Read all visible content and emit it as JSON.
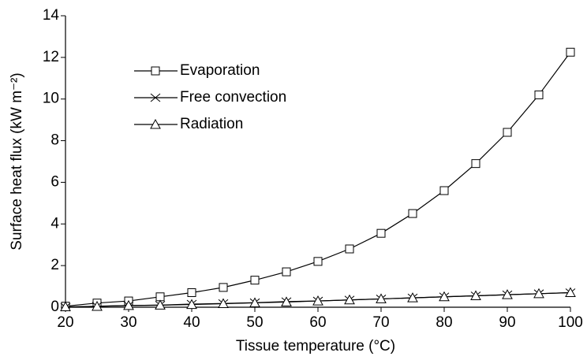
{
  "chart_data": {
    "type": "line",
    "x_label": "Tissue temperature (°C)",
    "y_label": "Surface heat flux (kW m⁻²)",
    "x": [
      20,
      25,
      30,
      35,
      40,
      45,
      50,
      55,
      60,
      65,
      70,
      75,
      80,
      85,
      90,
      95,
      100
    ],
    "series": [
      {
        "name": "Evaporation",
        "color": "#000000",
        "marker": "square",
        "values": [
          0.05,
          0.2,
          0.3,
          0.5,
          0.7,
          0.95,
          1.3,
          1.7,
          2.2,
          2.8,
          3.55,
          4.5,
          5.6,
          6.9,
          8.4,
          10.2,
          12.25
        ]
      },
      {
        "name": "Free convection",
        "color": "#000000",
        "marker": "x",
        "values": [
          0,
          0.05,
          0.08,
          0.1,
          0.15,
          0.18,
          0.22,
          0.27,
          0.3,
          0.35,
          0.4,
          0.45,
          0.5,
          0.55,
          0.6,
          0.65,
          0.7
        ]
      },
      {
        "name": "Radiation",
        "color": "#000000",
        "marker": "triangle",
        "values": [
          0.02,
          0.04,
          0.08,
          0.1,
          0.13,
          0.17,
          0.21,
          0.25,
          0.3,
          0.35,
          0.4,
          0.45,
          0.5,
          0.55,
          0.6,
          0.65,
          0.7
        ]
      }
    ],
    "xlim": [
      20,
      100
    ],
    "xticks": [
      20,
      30,
      40,
      50,
      60,
      70,
      80,
      90,
      100
    ],
    "ylim": [
      0,
      14
    ],
    "yticks": [
      0,
      2,
      4,
      6,
      8,
      10,
      12,
      14
    ],
    "grid": false,
    "legend": "upper left"
  }
}
